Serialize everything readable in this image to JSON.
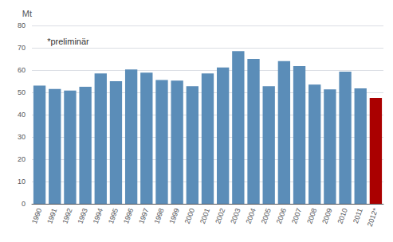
{
  "chart_data": {
    "type": "bar",
    "categories": [
      "1990",
      "1991",
      "1992",
      "1993",
      "1994",
      "1995",
      "1996",
      "1997",
      "1998",
      "1999",
      "2000",
      "2001",
      "2002",
      "2003",
      "2004",
      "2005",
      "2006",
      "2007",
      "2008",
      "2009",
      "2010",
      "2011",
      "2012*"
    ],
    "values": [
      53.0,
      51.5,
      50.8,
      52.5,
      58.5,
      55.0,
      60.3,
      58.8,
      55.5,
      55.3,
      52.8,
      58.5,
      61.2,
      68.5,
      65.0,
      52.8,
      64.0,
      61.8,
      53.5,
      51.3,
      59.3,
      51.8,
      47.5
    ],
    "colors": [
      "#5b8db8",
      "#5b8db8",
      "#5b8db8",
      "#5b8db8",
      "#5b8db8",
      "#5b8db8",
      "#5b8db8",
      "#5b8db8",
      "#5b8db8",
      "#5b8db8",
      "#5b8db8",
      "#5b8db8",
      "#5b8db8",
      "#5b8db8",
      "#5b8db8",
      "#5b8db8",
      "#5b8db8",
      "#5b8db8",
      "#5b8db8",
      "#5b8db8",
      "#5b8db8",
      "#5b8db8",
      "#aa0000"
    ],
    "ylabel": "Mt",
    "annotation": "*preliminär",
    "ylim": [
      0,
      80
    ],
    "yticks": [
      0,
      10,
      20,
      30,
      40,
      50,
      60,
      70,
      80
    ],
    "grid": true
  }
}
